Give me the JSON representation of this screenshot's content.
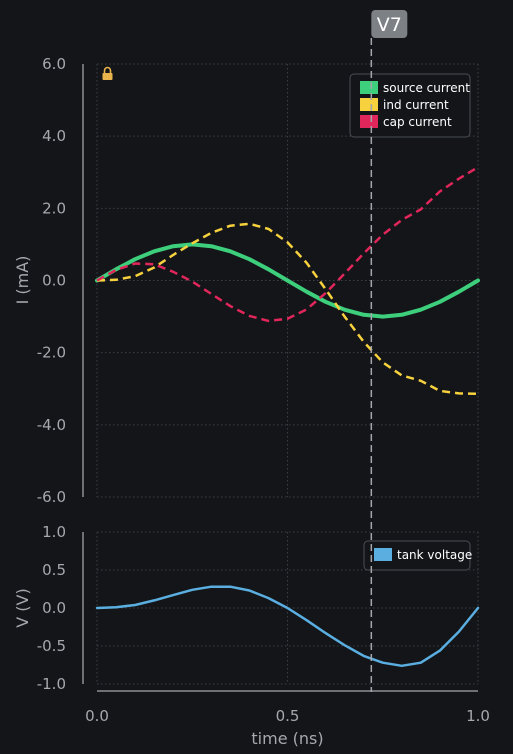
{
  "chart_data": [
    {
      "type": "line",
      "ylabel": "I (mA)",
      "ylim": [
        -6,
        6
      ],
      "xlim": [
        0,
        1
      ],
      "grid": true,
      "legend_position": "top-right",
      "y_ticks": [
        "6.0",
        "4.0",
        "2.0",
        "0.0",
        "-2.0",
        "-4.0",
        "-6.0"
      ],
      "lock_icon": "lock-icon",
      "x": [
        0,
        0.05,
        0.1,
        0.15,
        0.2,
        0.25,
        0.3,
        0.35,
        0.4,
        0.45,
        0.5,
        0.55,
        0.6,
        0.65,
        0.7,
        0.75,
        0.8,
        0.85,
        0.9,
        0.95,
        1.0
      ],
      "series": [
        {
          "name": "source current",
          "color": "#3ecf7c",
          "style": "solid",
          "values": [
            0,
            0.31,
            0.59,
            0.81,
            0.95,
            1.0,
            0.95,
            0.81,
            0.59,
            0.31,
            0,
            -0.31,
            -0.59,
            -0.81,
            -0.95,
            -1.0,
            -0.95,
            -0.81,
            -0.59,
            -0.31,
            0
          ]
        },
        {
          "name": "ind current",
          "color": "#f7d23e",
          "style": "dashed",
          "values": [
            0,
            0.02,
            0.12,
            0.36,
            0.71,
            1.03,
            1.32,
            1.52,
            1.57,
            1.43,
            1.06,
            0.49,
            -0.24,
            -1.0,
            -1.7,
            -2.27,
            -2.63,
            -2.78,
            -3.06,
            -3.13,
            -3.14
          ]
        },
        {
          "name": "cap current",
          "color": "#e0265a",
          "style": "dashed",
          "values": [
            0,
            0.29,
            0.47,
            0.45,
            0.24,
            -0.03,
            -0.37,
            -0.71,
            -0.98,
            -1.12,
            -1.06,
            -0.8,
            -0.35,
            0.19,
            0.75,
            1.27,
            1.68,
            1.97,
            2.47,
            2.82,
            3.14
          ]
        }
      ]
    },
    {
      "type": "line",
      "xlabel": "time (ns)",
      "ylabel": "V (V)",
      "ylim": [
        -1,
        1
      ],
      "xlim": [
        0,
        1
      ],
      "grid": true,
      "legend_position": "top-right",
      "y_ticks": [
        "1.0",
        "0.5",
        "0.0",
        "-0.5",
        "-1.0"
      ],
      "x_ticks": [
        "0.0",
        "0.5",
        "1.0"
      ],
      "x": [
        0,
        0.05,
        0.1,
        0.15,
        0.2,
        0.25,
        0.3,
        0.35,
        0.4,
        0.45,
        0.5,
        0.55,
        0.6,
        0.65,
        0.7,
        0.75,
        0.8,
        0.85,
        0.9,
        0.95,
        1.0
      ],
      "series": [
        {
          "name": "tank voltage",
          "color": "#5aaee0",
          "style": "solid",
          "values": [
            0,
            0.01,
            0.04,
            0.1,
            0.17,
            0.24,
            0.28,
            0.28,
            0.23,
            0.13,
            0.0,
            -0.16,
            -0.33,
            -0.49,
            -0.63,
            -0.72,
            -0.76,
            -0.72,
            -0.56,
            -0.31,
            0
          ]
        }
      ]
    }
  ],
  "marker": {
    "label": "V7",
    "x": 0.72
  }
}
